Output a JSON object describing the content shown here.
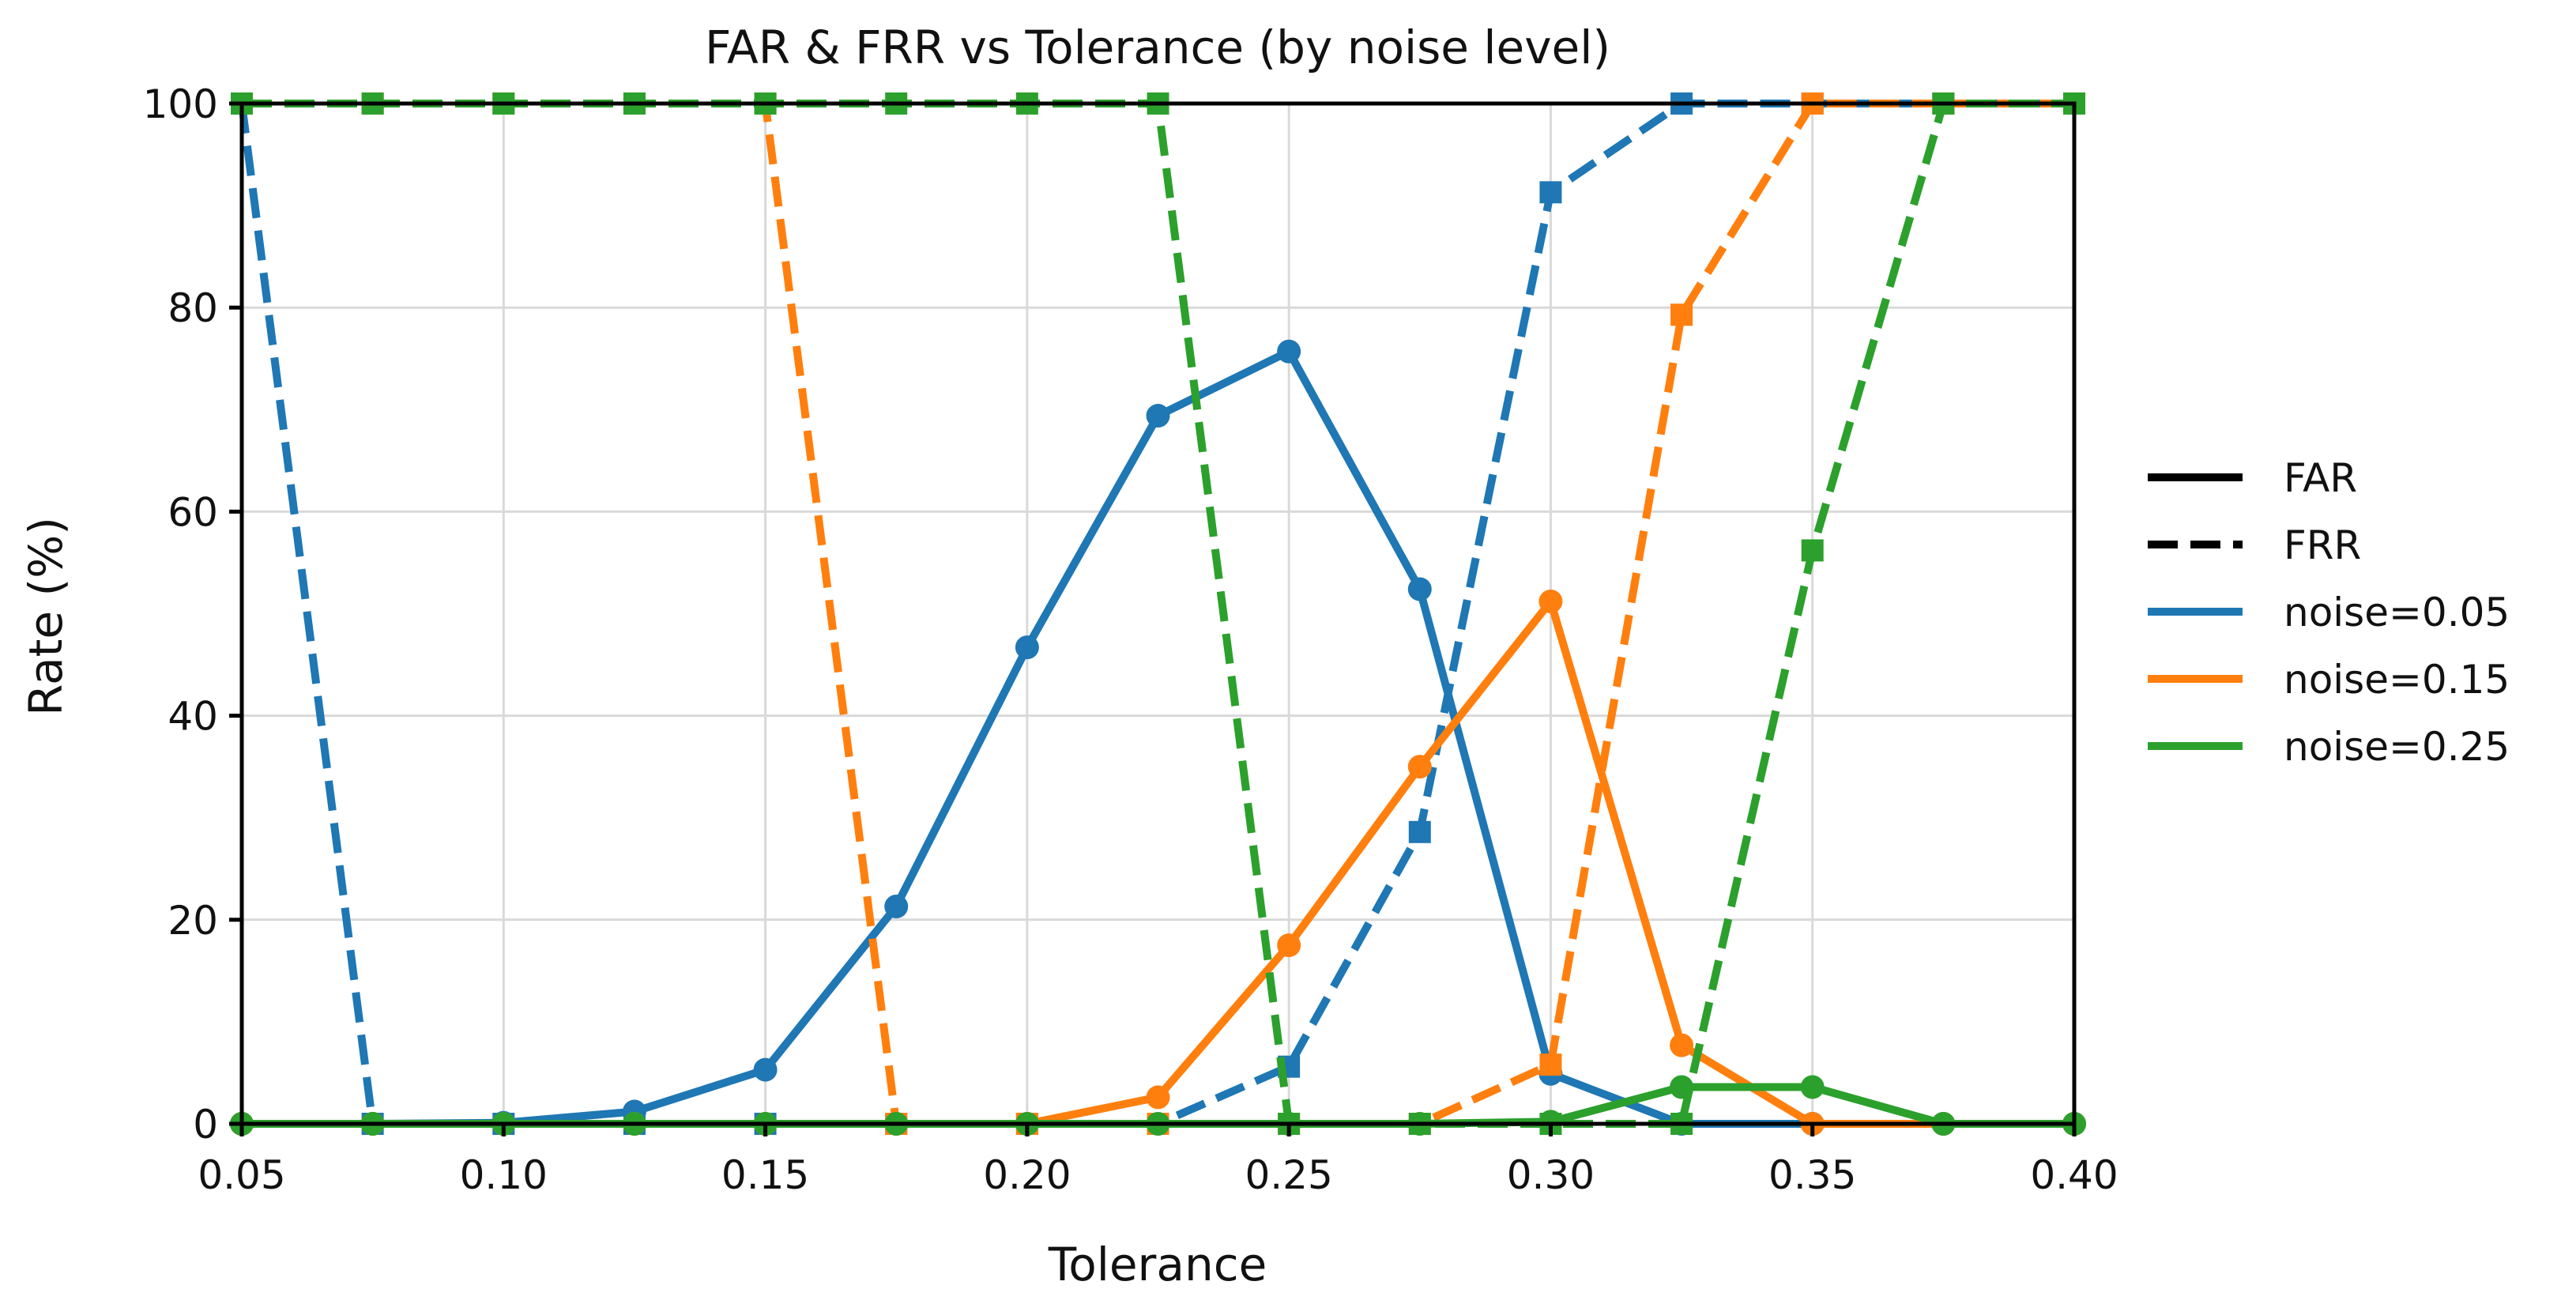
{
  "chart_data": {
    "type": "line",
    "title": "FAR & FRR vs Tolerance (by noise level)",
    "xlabel": "Tolerance",
    "ylabel": "Rate (%)",
    "xlim": [
      0.05,
      0.4
    ],
    "ylim": [
      0,
      100
    ],
    "xticks": [
      "0.05",
      "0.10",
      "0.15",
      "0.20",
      "0.25",
      "0.30",
      "0.35",
      "0.40"
    ],
    "yticks": [
      "0",
      "20",
      "40",
      "60",
      "80",
      "100"
    ],
    "grid": true,
    "legend_position": "right, outside plot",
    "x": [
      0.05,
      0.075,
      0.1,
      0.125,
      0.15,
      0.175,
      0.2,
      0.225,
      0.25,
      0.275,
      0.3,
      0.325,
      0.35,
      0.375,
      0.4
    ],
    "legend": {
      "styles": [
        {
          "label": "FAR",
          "dash": "solid"
        },
        {
          "label": "FRR",
          "dash": "dashed"
        }
      ],
      "colors": [
        {
          "label": "noise=0.05",
          "color": "#1f77b4"
        },
        {
          "label": "noise=0.15",
          "color": "#ff7f0e"
        },
        {
          "label": "noise=0.25",
          "color": "#2ca02c"
        }
      ]
    },
    "series": [
      {
        "noise": "0.05",
        "metric": "FAR",
        "color": "#1f77b4",
        "dash": "solid",
        "marker": "circle",
        "values": [
          0,
          0,
          0.1,
          1.2,
          5.3,
          21.3,
          46.7,
          69.4,
          75.7,
          52.4,
          4.9,
          0,
          0,
          0,
          0
        ]
      },
      {
        "noise": "0.05",
        "metric": "FRR",
        "color": "#1f77b4",
        "dash": "dashed",
        "marker": "square",
        "values": [
          100,
          0,
          0,
          0,
          0,
          0,
          0,
          0,
          5.6,
          28.6,
          91.3,
          100,
          100,
          100,
          100
        ]
      },
      {
        "noise": "0.15",
        "metric": "FAR",
        "color": "#ff7f0e",
        "dash": "solid",
        "marker": "circle",
        "values": [
          0,
          0,
          0,
          0,
          0,
          0,
          0,
          2.6,
          17.5,
          35.0,
          51.2,
          7.7,
          0,
          0,
          0
        ]
      },
      {
        "noise": "0.15",
        "metric": "FRR",
        "color": "#ff7f0e",
        "dash": "dashed",
        "marker": "square",
        "values": [
          100,
          100,
          100,
          100,
          100,
          0,
          0,
          0,
          0,
          0,
          5.8,
          79.3,
          100,
          100,
          100
        ]
      },
      {
        "noise": "0.25",
        "metric": "FAR",
        "color": "#2ca02c",
        "dash": "solid",
        "marker": "circle",
        "values": [
          0,
          0,
          0,
          0,
          0,
          0,
          0,
          0,
          0,
          0,
          0.2,
          3.6,
          3.6,
          0,
          0
        ]
      },
      {
        "noise": "0.25",
        "metric": "FRR",
        "color": "#2ca02c",
        "dash": "dashed",
        "marker": "square",
        "values": [
          100,
          100,
          100,
          100,
          100,
          100,
          100,
          100,
          0,
          0,
          0,
          0,
          56.2,
          100,
          100
        ]
      }
    ]
  }
}
